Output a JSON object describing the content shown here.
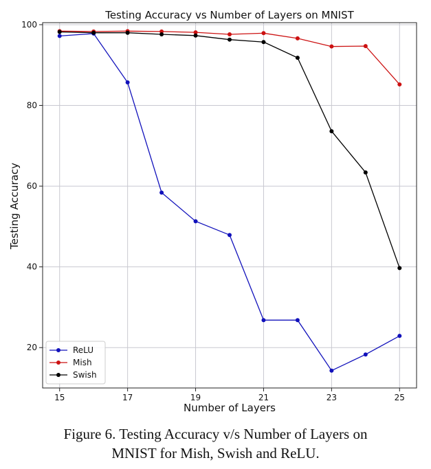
{
  "chart_data": {
    "type": "line",
    "title": "Testing Accuracy vs Number of Layers on MNIST",
    "xlabel": "Number of Layers",
    "ylabel": "Testing Accuracy",
    "xlim": [
      14.5,
      25.5
    ],
    "ylim": [
      10,
      100.5
    ],
    "xticks": [
      15,
      17,
      19,
      21,
      23,
      25
    ],
    "yticks": [
      20,
      40,
      60,
      80,
      100
    ],
    "grid": true,
    "legend_position": "bottom-left",
    "x": [
      15,
      16,
      17,
      18,
      19,
      20,
      21,
      22,
      23,
      24,
      25
    ],
    "series": [
      {
        "name": "ReLU",
        "color": "#1111bb",
        "values": [
          97.2,
          97.8,
          85.7,
          58.4,
          51.3,
          47.9,
          26.8,
          26.8,
          14.3,
          18.3,
          22.9
        ]
      },
      {
        "name": "Mish",
        "color": "#cc1111",
        "values": [
          98.4,
          98.3,
          98.4,
          98.3,
          98.1,
          97.6,
          97.9,
          96.6,
          94.6,
          94.7,
          85.2
        ]
      },
      {
        "name": "Swish",
        "color": "#000000",
        "values": [
          98.2,
          98.0,
          98.0,
          97.6,
          97.3,
          96.3,
          95.7,
          91.8,
          73.6,
          63.4,
          39.7
        ]
      }
    ]
  },
  "caption": {
    "line1": "Figure 6. Testing Accuracy v/s Number of Layers on",
    "line2": "MNIST for Mish, Swish and ReLU."
  }
}
